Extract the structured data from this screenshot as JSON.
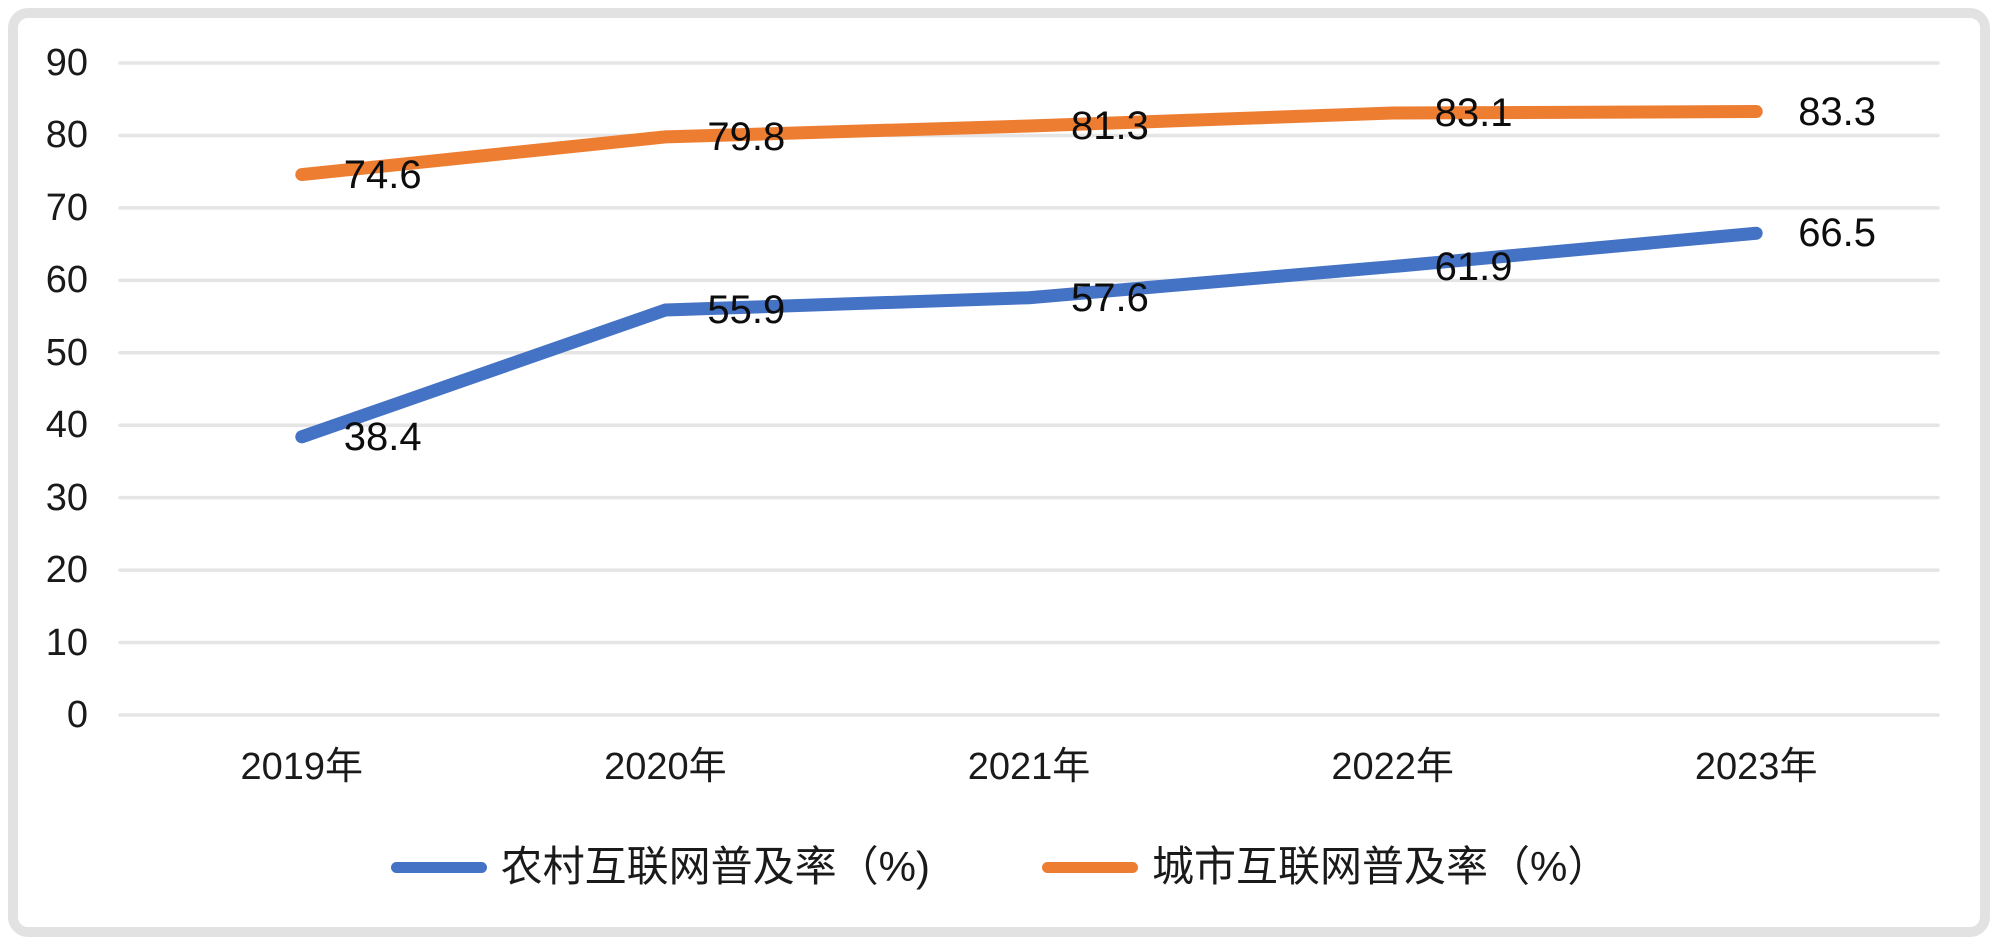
{
  "chart_data": {
    "type": "line",
    "categories": [
      "2019年",
      "2020年",
      "2021年",
      "2022年",
      "2023年"
    ],
    "series": [
      {
        "name": "农村互联网普及率（%)",
        "values": [
          38.4,
          55.9,
          57.6,
          61.9,
          66.5
        ],
        "color": "#4472C4"
      },
      {
        "name": "城市互联网普及率（%）",
        "values": [
          74.6,
          79.8,
          81.3,
          83.1,
          83.3
        ],
        "color": "#ED7D31"
      }
    ],
    "title": "",
    "xlabel": "",
    "ylabel": "",
    "ylim": [
      0,
      90
    ],
    "yticks": [
      0,
      10,
      20,
      30,
      40,
      50,
      60,
      70,
      80,
      90
    ],
    "grid": "horizontal",
    "legend_position": "bottom",
    "data_labels": "right"
  },
  "style": {
    "gridline_color": "#e5e5e5",
    "axis_text_color": "#1a1a1a",
    "data_label_color": "#0d0d0d",
    "frame_color": "#e2e2e2",
    "background": "#ffffff"
  }
}
